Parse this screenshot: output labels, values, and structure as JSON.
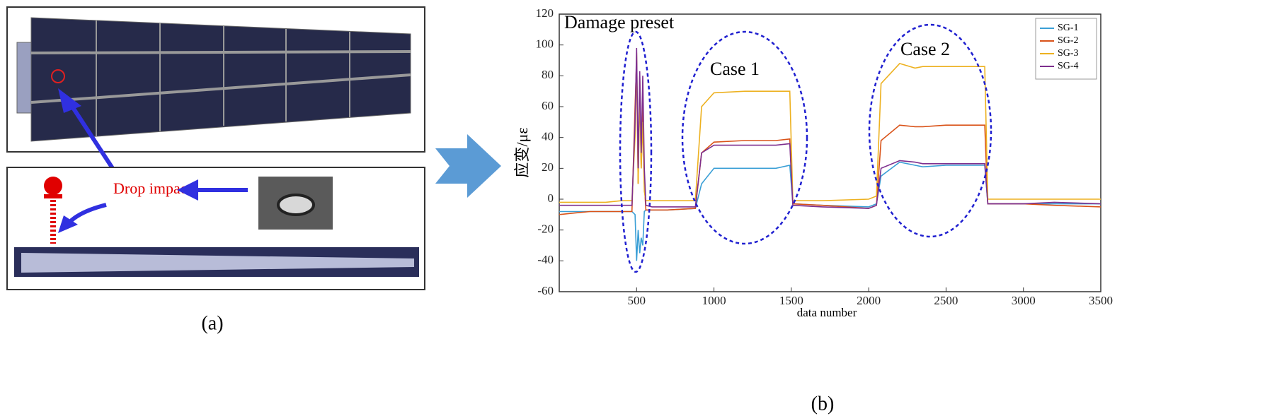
{
  "panel_a": {
    "impact_label": "Drop impact",
    "caption": "(a)"
  },
  "chart_data": {
    "type": "line",
    "caption": "(b)",
    "xlabel": "data number",
    "ylabel": "应变/με",
    "annotations": [
      "Damage preset",
      "Case 1",
      "Case 2"
    ],
    "x": [
      0,
      100,
      200,
      300,
      400,
      470,
      490,
      500,
      510,
      520,
      530,
      540,
      550,
      560,
      600,
      700,
      880,
      920,
      1000,
      1200,
      1400,
      1490,
      1510,
      1700,
      2000,
      2050,
      2080,
      2200,
      2300,
      2350,
      2500,
      2700,
      2750,
      2770,
      3000,
      3200,
      3500
    ],
    "series": [
      {
        "name": "SG-1",
        "color": "#3a9fd6",
        "values": [
          -8,
          -8,
          -8,
          -8,
          -8,
          -8,
          -10,
          -40,
          -20,
          -35,
          -25,
          -30,
          -8,
          -7,
          -7,
          -7,
          -6,
          10,
          20,
          20,
          20,
          22,
          -3,
          -4,
          -5,
          -3,
          15,
          24,
          22,
          21,
          22,
          22,
          22,
          -3,
          -3,
          -3,
          -3
        ]
      },
      {
        "name": "SG-2",
        "color": "#d95319",
        "values": [
          -10,
          -9,
          -8,
          -8,
          -8,
          -8,
          60,
          90,
          10,
          80,
          20,
          60,
          10,
          -7,
          -7,
          -7,
          -6,
          30,
          37,
          38,
          38,
          39,
          -3,
          -4,
          -6,
          -4,
          38,
          48,
          47,
          47,
          48,
          48,
          48,
          -3,
          -3,
          -4,
          -5
        ]
      },
      {
        "name": "SG-3",
        "color": "#edb120",
        "values": [
          -2,
          -2,
          -2,
          -2,
          -1,
          -1,
          40,
          95,
          10,
          70,
          20,
          50,
          5,
          -1,
          -1,
          -1,
          -1,
          60,
          69,
          70,
          70,
          70,
          -1,
          -1,
          0,
          2,
          75,
          88,
          85,
          86,
          86,
          86,
          86,
          0,
          0,
          0,
          0
        ]
      },
      {
        "name": "SG-4",
        "color": "#7e2f8e",
        "values": [
          -4,
          -4,
          -4,
          -4,
          -4,
          -4,
          50,
          98,
          20,
          83,
          30,
          80,
          20,
          -4,
          -5,
          -5,
          -5,
          30,
          35,
          35,
          35,
          36,
          -4,
          -5,
          -6,
          -4,
          20,
          25,
          24,
          23,
          23,
          23,
          23,
          -3,
          -3,
          -2,
          -3
        ]
      }
    ],
    "xlim": [
      0,
      3500
    ],
    "xticks": [
      500,
      1000,
      1500,
      2000,
      2500,
      3000,
      3500
    ],
    "ylim": [
      -60,
      120
    ],
    "yticks": [
      -60,
      -40,
      -20,
      0,
      20,
      40,
      60,
      80,
      100,
      120
    ],
    "legend": "upper right"
  }
}
